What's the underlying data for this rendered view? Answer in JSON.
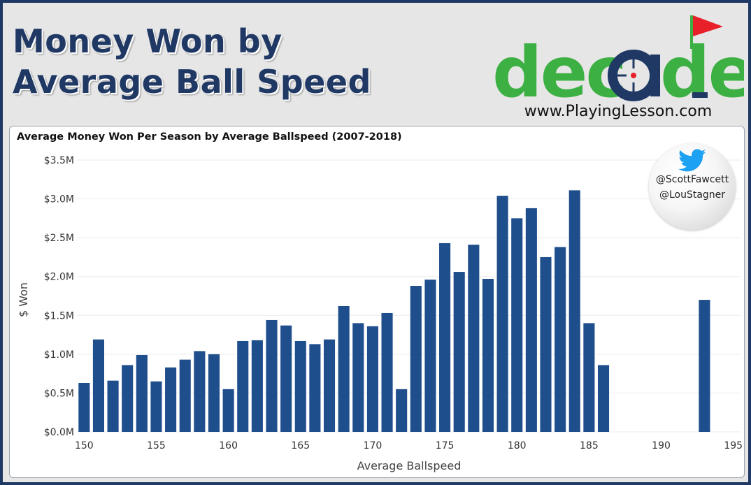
{
  "header": {
    "title_line1": "Money Won by",
    "title_line2": "Average Ball Speed"
  },
  "logo": {
    "word_prefix": "dec",
    "word_suffix": "de",
    "url": "www.PlayingLesson.com",
    "colors": {
      "green": "#3cb043",
      "navy": "#1f3864",
      "flag": "#e8202a",
      "crosshair": "#e8202a"
    }
  },
  "twitter": {
    "handle_1": "@ScottFawcett",
    "handle_2": "@LouStagner",
    "icon": "twitter-bird-icon",
    "color": "#1da1f2"
  },
  "colors": {
    "bar": "#1f4e8c",
    "frame": "#1f3864",
    "background": "#e6e6e6"
  },
  "chart_data": {
    "type": "bar",
    "title": "Average Money Won Per Season by Average Ballspeed (2007-2018)",
    "xlabel": "Average Ballspeed",
    "ylabel": "$ Won",
    "xlim": [
      149.5,
      195.5
    ],
    "ylim": [
      0,
      3.5
    ],
    "x_ticks": [
      150,
      155,
      160,
      165,
      170,
      175,
      180,
      185,
      190,
      195
    ],
    "x_tick_labels": [
      "150",
      "155",
      "160",
      "165",
      "170",
      "175",
      "180",
      "185",
      "190",
      "195"
    ],
    "y_ticks": [
      0,
      0.5,
      1.0,
      1.5,
      2.0,
      2.5,
      3.0,
      3.5
    ],
    "y_tick_labels": [
      "$0.0M",
      "$0.5M",
      "$1.0M",
      "$1.5M",
      "$2.0M",
      "$2.5M",
      "$3.0M",
      "$3.5M"
    ],
    "grid": "horizontal",
    "x": [
      150,
      151,
      152,
      153,
      154,
      155,
      156,
      157,
      158,
      159,
      160,
      161,
      162,
      163,
      164,
      165,
      166,
      167,
      168,
      169,
      170,
      171,
      172,
      173,
      174,
      175,
      176,
      177,
      178,
      179,
      180,
      181,
      182,
      183,
      184,
      185,
      186,
      193
    ],
    "values": [
      0.63,
      1.19,
      0.66,
      0.86,
      0.99,
      0.65,
      0.83,
      0.93,
      1.04,
      1.0,
      0.55,
      1.17,
      1.18,
      1.44,
      1.37,
      1.17,
      1.13,
      1.19,
      1.62,
      1.4,
      1.36,
      1.53,
      0.55,
      1.88,
      1.96,
      2.43,
      2.06,
      2.41,
      1.97,
      3.04,
      2.75,
      2.88,
      2.25,
      2.38,
      3.11,
      1.4,
      0.86,
      1.7
    ]
  }
}
